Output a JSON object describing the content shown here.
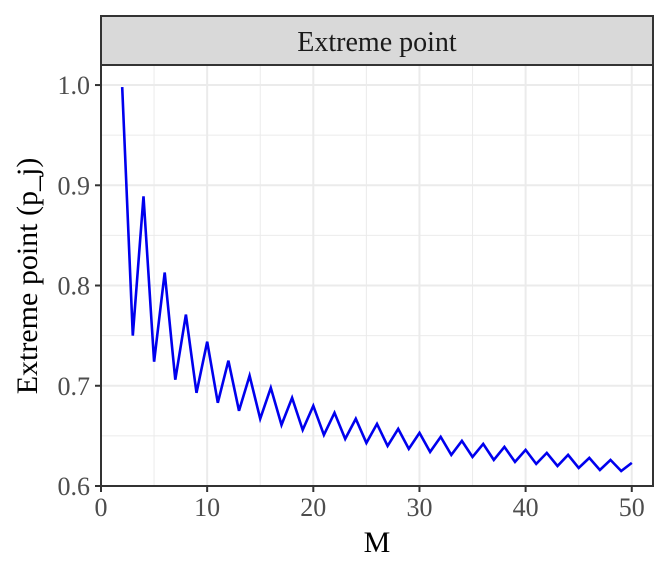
{
  "chart_data": {
    "type": "line",
    "title": "Extreme point",
    "xlabel": "M",
    "ylabel": "Extreme point (p_j)",
    "xlim": [
      0,
      52
    ],
    "ylim": [
      0.6,
      1.02
    ],
    "x_ticks": [
      0,
      10,
      20,
      30,
      40,
      50
    ],
    "x_tick_labels": [
      "0",
      "10",
      "20",
      "30",
      "40",
      "50"
    ],
    "y_ticks": [
      0.6,
      0.7,
      0.8,
      0.9,
      1.0
    ],
    "y_tick_labels": [
      "0.6",
      "0.7",
      "0.8",
      "0.9",
      "1.0"
    ],
    "grid": true,
    "line_color": "#0000ee",
    "panel_background": "#ffffff",
    "strip_background": "#d9d9d9",
    "grid_color": "#ebebeb",
    "series": [
      {
        "x": [
          2,
          3,
          4,
          5,
          6,
          7,
          8,
          9,
          10,
          11,
          12,
          13,
          14,
          15,
          16,
          17,
          18,
          19,
          20,
          21,
          22,
          23,
          24,
          25,
          26,
          27,
          28,
          29,
          30,
          31,
          32,
          33,
          34,
          35,
          36,
          37,
          38,
          39,
          40,
          41,
          42,
          43,
          44,
          45,
          46,
          47,
          48,
          49,
          50
        ],
        "values": [
          0.998,
          0.75,
          0.889,
          0.724,
          0.813,
          0.706,
          0.771,
          0.693,
          0.744,
          0.683,
          0.725,
          0.675,
          0.71,
          0.667,
          0.698,
          0.661,
          0.688,
          0.656,
          0.68,
          0.651,
          0.673,
          0.647,
          0.667,
          0.643,
          0.662,
          0.64,
          0.657,
          0.637,
          0.653,
          0.634,
          0.649,
          0.631,
          0.645,
          0.629,
          0.642,
          0.626,
          0.639,
          0.624,
          0.636,
          0.622,
          0.633,
          0.62,
          0.631,
          0.618,
          0.628,
          0.616,
          0.626,
          0.615,
          0.623
        ]
      }
    ]
  }
}
